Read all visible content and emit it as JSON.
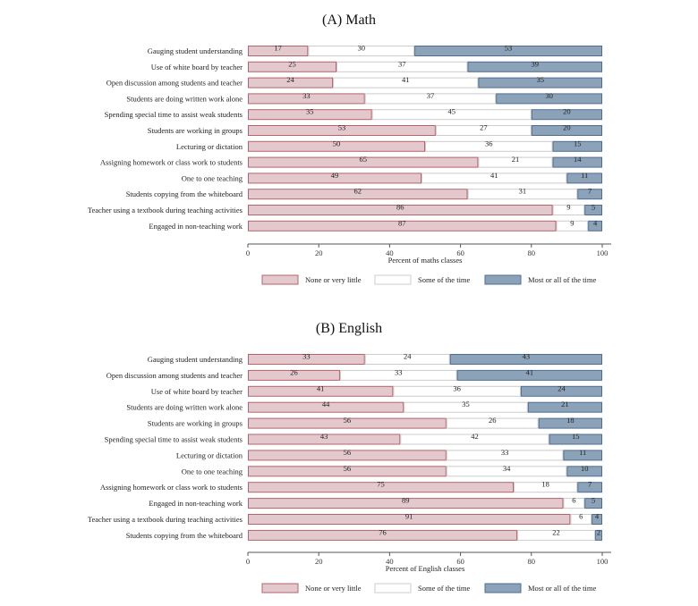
{
  "colors": {
    "none": "#e3c9cd",
    "none_stroke": "#b5646c",
    "some": "#ffffff",
    "some_stroke": "#cccccc",
    "most": "#8ba2b8",
    "most_stroke": "#4f6f92"
  },
  "legend": [
    "None or very little",
    "Some of the time",
    "Most or all of the time"
  ],
  "chart_data": [
    {
      "type": "bar",
      "orientation": "horizontal",
      "stacked": true,
      "title": "(A) Math",
      "xlabel": "Percent of maths classes",
      "ylabel": "",
      "xlim": [
        0,
        100
      ],
      "xticks": [
        "0",
        "20",
        "40",
        "60",
        "80",
        "100"
      ],
      "legend_position": "bottom",
      "categories": [
        "Gauging student understanding",
        "Use of white board by teacher",
        "Open discussion among students and teacher",
        "Students are doing written work alone",
        "Spending special time to assist weak students",
        "Students are working in groups",
        "Lecturing or dictation",
        "Assigning homework or class work to students",
        "One to one teaching",
        "Students copying from the whiteboard",
        "Teacher using a textbook during teaching activities",
        "Engaged in non-teaching work"
      ],
      "series": [
        {
          "name": "None or very little",
          "values": [
            17,
            25,
            24,
            33,
            35,
            53,
            50,
            65,
            49,
            62,
            86,
            87
          ]
        },
        {
          "name": "Some of the time",
          "values": [
            30,
            37,
            41,
            37,
            45,
            27,
            36,
            21,
            41,
            31,
            9,
            9
          ]
        },
        {
          "name": "Most or all of the time",
          "values": [
            53,
            39,
            35,
            30,
            20,
            20,
            15,
            14,
            11,
            7,
            5,
            4
          ]
        }
      ]
    },
    {
      "type": "bar",
      "orientation": "horizontal",
      "stacked": true,
      "title": "(B) English",
      "xlabel": "Percent of English classes",
      "ylabel": "",
      "xlim": [
        0,
        100
      ],
      "xticks": [
        "0",
        "20",
        "40",
        "60",
        "80",
        "100"
      ],
      "legend_position": "bottom",
      "categories": [
        "Gauging student understanding",
        "Open discussion among students and teacher",
        "Use of white board by teacher",
        "Students are doing written work alone",
        "Students are working in groups",
        "Spending special time to assist weak students",
        "Lecturing or dictation",
        "One to one teaching",
        "Assigning homework or class work to students",
        "Engaged in non-teaching work",
        "Teacher using a textbook during teaching activities",
        "Students copying from the whiteboard"
      ],
      "series": [
        {
          "name": "None or very little",
          "values": [
            33,
            26,
            41,
            44,
            56,
            43,
            56,
            56,
            75,
            89,
            91,
            76
          ]
        },
        {
          "name": "Some of the time",
          "values": [
            24,
            33,
            36,
            35,
            26,
            42,
            33,
            34,
            18,
            6,
            6,
            22
          ]
        },
        {
          "name": "Most or all of the time",
          "values": [
            43,
            41,
            24,
            21,
            18,
            15,
            11,
            10,
            7,
            5,
            4,
            2
          ]
        }
      ]
    }
  ]
}
